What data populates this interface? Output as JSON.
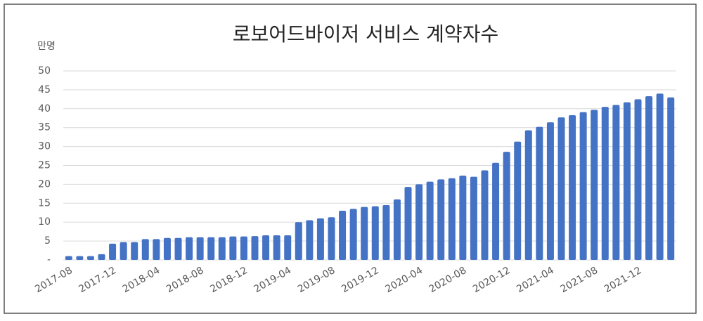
{
  "chart_data": {
    "type": "bar",
    "title": "로보어드바이저 서비스 계약자수",
    "y_label": "만명",
    "categories": [
      "2017-08",
      null,
      null,
      null,
      "2017-12",
      null,
      null,
      null,
      "2018-04",
      null,
      null,
      null,
      "2018-08",
      null,
      null,
      null,
      "2018-12",
      null,
      null,
      null,
      "2019-04",
      null,
      null,
      null,
      "2019-08",
      null,
      null,
      null,
      "2019-12",
      null,
      null,
      null,
      "2020-04",
      null,
      null,
      null,
      "2020-08",
      null,
      null,
      null,
      "2020-12",
      null,
      null,
      null,
      "2021-04",
      null,
      null,
      null,
      "2021-08",
      null,
      null,
      null,
      "2021-12",
      null,
      null,
      null
    ],
    "values": [
      1,
      1,
      1,
      1.5,
      4.3,
      4.7,
      4.7,
      5.5,
      5.5,
      5.8,
      5.8,
      6,
      6,
      6,
      6,
      6.2,
      6.2,
      6.3,
      6.5,
      6.5,
      6.5,
      10,
      10.5,
      11,
      11.3,
      13,
      13.5,
      14,
      14.2,
      14.5,
      16,
      19.3,
      20,
      20.7,
      21.3,
      21.6,
      22.3,
      22,
      23.7,
      25.7,
      28.6,
      31.3,
      34.3,
      35.2,
      36.4,
      37.7,
      38.3,
      39.1,
      39.7,
      40.5,
      41,
      41.7,
      42.5,
      43.3,
      44,
      43
    ],
    "color": "#4472c4",
    "ylim": [
      0,
      50
    ],
    "yticks": [
      {
        "value": 0,
        "label": "-"
      },
      5,
      10,
      15,
      20,
      25,
      30,
      35,
      40,
      45,
      50
    ],
    "grid": true
  }
}
